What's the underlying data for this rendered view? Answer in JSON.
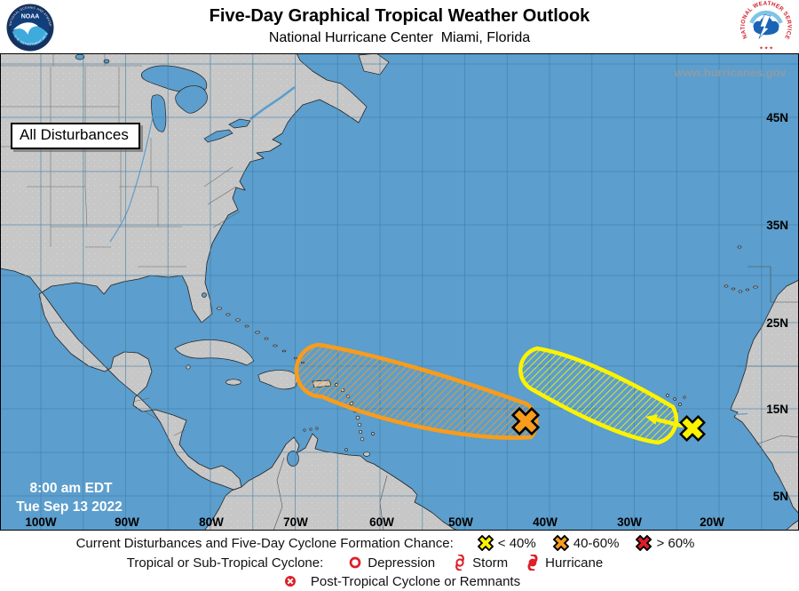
{
  "header": {
    "title": "Five-Day Graphical Tropical Weather Outlook",
    "subtitle": "National Hurricane Center  Miami, Florida",
    "noaa_logo_text": "NOAA",
    "noaa_ring_top": "NATIONAL OCEANIC AND ATMOSPHERIC ADMINISTRATION",
    "noaa_ring_bottom": "U.S. DEPARTMENT OF COMMERCE",
    "nws_ring_text": "NATIONAL WEATHER SERVICE",
    "nws_stars": "★ ★ ★"
  },
  "map": {
    "mode_label": "All Disturbances",
    "watermark": "www.hurricanes.gov",
    "timestamp": {
      "time": "8:00 am EDT",
      "date": "Tue Sep 13 2022"
    },
    "lat_labels": [
      "45N",
      "35N",
      "25N",
      "15N",
      "5N"
    ],
    "lon_labels": [
      "100W",
      "90W",
      "80W",
      "70W",
      "60W",
      "50W",
      "40W",
      "30W",
      "20W"
    ],
    "disturbances": [
      {
        "id": "disturbance-1",
        "formation_chance": "40-60%",
        "marker": "x",
        "color_key": "orange"
      },
      {
        "id": "disturbance-2",
        "formation_chance": "< 40%",
        "marker": "x",
        "color_key": "yellow",
        "motion_arrow": "westward"
      }
    ],
    "colors": {
      "ocean": "#5C9ECD",
      "land": "#C7C7C7",
      "gridline": "#3F7FA8",
      "orange": "#F89C1C",
      "yellow": "#FCF300",
      "red": "#DE1E28",
      "watermark": "#8E9CA8"
    }
  },
  "legend": {
    "formation_line": {
      "label": "Current Disturbances and Five-Day Cyclone Formation Chance:",
      "items": [
        {
          "label": "< 40%"
        },
        {
          "label": "40-60%"
        },
        {
          "label": "> 60%"
        }
      ]
    },
    "cyclone_line": {
      "label": "Tropical or Sub-Tropical Cyclone:",
      "items": [
        {
          "label": "Depression"
        },
        {
          "label": "Storm"
        },
        {
          "label": "Hurricane"
        }
      ]
    },
    "post_tropical_line": {
      "items": [
        {
          "label": "Post-Tropical Cyclone or Remnants"
        }
      ]
    }
  }
}
